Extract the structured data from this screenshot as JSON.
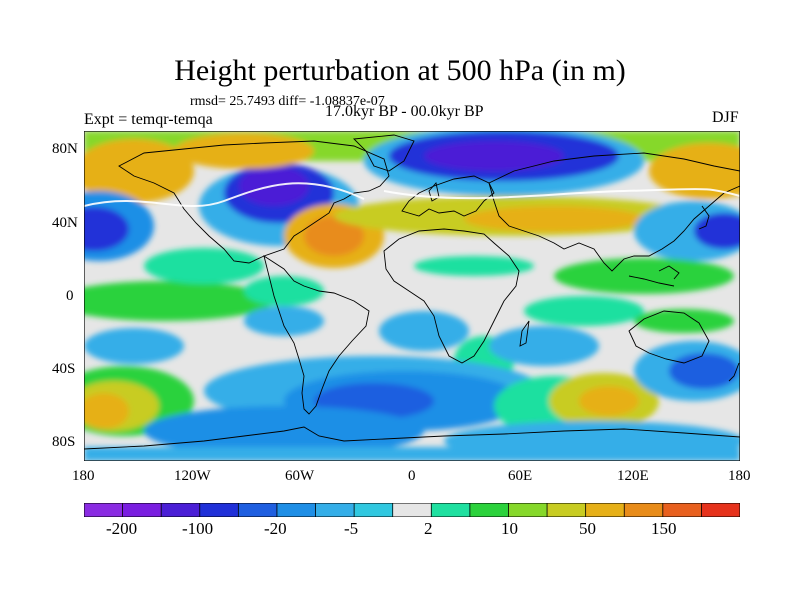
{
  "title": "Height perturbation at 500 hPa (in m)",
  "stats": "rmsd= 25.7493 diff= -1.08837e-07",
  "experiment": "Expt = temqr-temqa",
  "period": "17.0kyr BP - 00.0kyr BP",
  "season": "DJF",
  "lat_labels": [
    "80N",
    "40N",
    "0",
    "40S",
    "80S"
  ],
  "lon_labels": [
    "180",
    "120W",
    "60W",
    "0",
    "60E",
    "120E",
    "180"
  ],
  "colorbar": {
    "colors": [
      "#8a2be2",
      "#7a1ee0",
      "#4b1fd6",
      "#2030d8",
      "#1f5fe0",
      "#1f8fe6",
      "#34aee8",
      "#30c8e0",
      "#e6e6e6",
      "#1fe0a0",
      "#2cd23c",
      "#86d82a",
      "#c8cc22",
      "#e6b018",
      "#e88c1a",
      "#e8601e",
      "#e6321c"
    ],
    "labels": [
      "-200",
      "-100",
      "-20",
      "-5",
      "2",
      "10",
      "50",
      "150"
    ]
  }
}
